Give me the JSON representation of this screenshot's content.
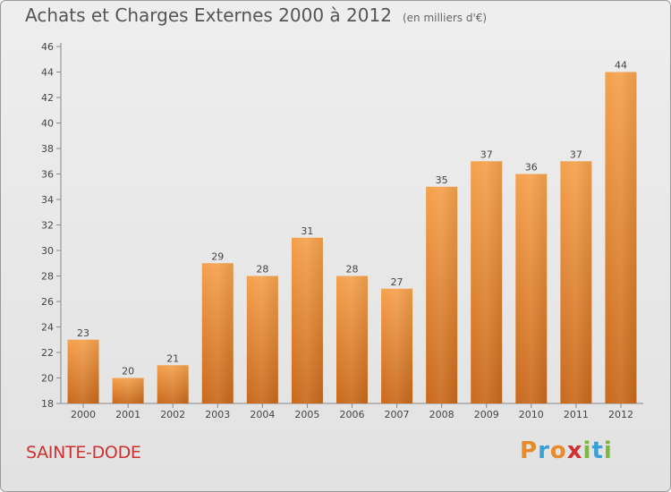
{
  "header": {
    "title": "Achats et Charges Externes 2000 à 2012",
    "unit": "(en milliers d'€)"
  },
  "footer": {
    "place": "SAINTE-DODE",
    "logo_text": "Proxiti",
    "logo_colors": [
      "#e8892a",
      "#3aa0d8",
      "#e8892a",
      "#d0312f",
      "#7cba3c",
      "#3aa0d8",
      "#7cba3c"
    ]
  },
  "chart_data": {
    "type": "bar",
    "categories": [
      "2000",
      "2001",
      "2002",
      "2003",
      "2004",
      "2005",
      "2006",
      "2007",
      "2008",
      "2009",
      "2010",
      "2011",
      "2012"
    ],
    "values": [
      23,
      20,
      21,
      29,
      28,
      31,
      28,
      27,
      35,
      37,
      36,
      37,
      44
    ],
    "ylim": [
      18,
      46
    ],
    "yticks": [
      18,
      20,
      22,
      24,
      26,
      28,
      30,
      32,
      34,
      36,
      38,
      40,
      42,
      44,
      46
    ],
    "grid": false,
    "bar_color": "#f0973d",
    "bar_color_dark": "#c8661b"
  }
}
